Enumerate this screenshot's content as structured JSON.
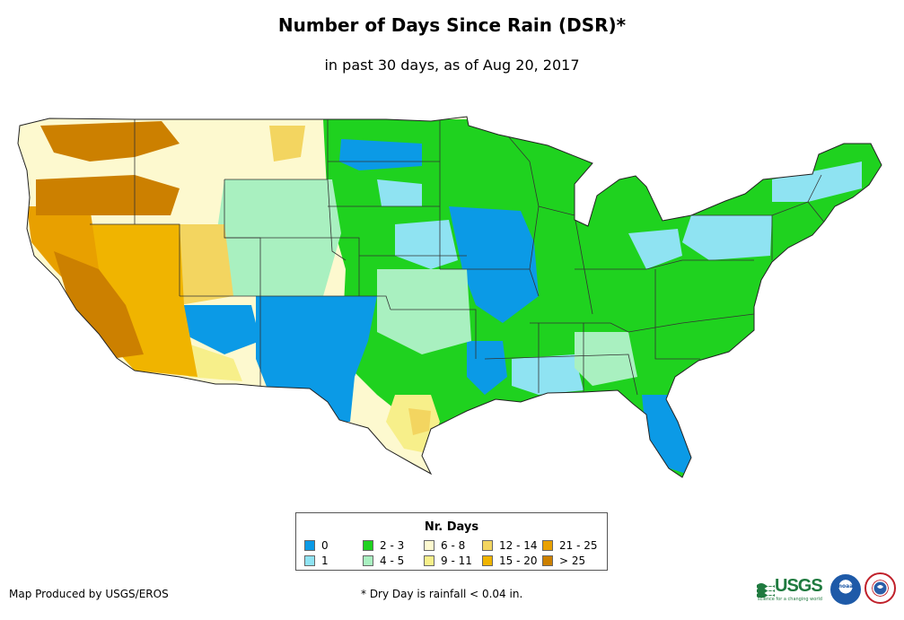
{
  "title": "Number of Days Since Rain (DSR)*",
  "subtitle": "in past 30 days, as of Aug 20, 2017",
  "legend": {
    "title": "Nr. Days",
    "items": [
      {
        "label": "0",
        "color": "#0b9ae6"
      },
      {
        "label": "1",
        "color": "#8fe3f2"
      },
      {
        "label": "2 - 3",
        "color": "#1fd21f"
      },
      {
        "label": "4 - 5",
        "color": "#a9f0c0"
      },
      {
        "label": "6 - 8",
        "color": "#fdf9cf"
      },
      {
        "label": "9 - 11",
        "color": "#f7ef8a"
      },
      {
        "label": "12 - 14",
        "color": "#f3d560"
      },
      {
        "label": "15 - 20",
        "color": "#f0b400"
      },
      {
        "label": "21 - 25",
        "color": "#e8a000"
      },
      {
        "label": "> 25",
        "color": "#cc8000"
      }
    ]
  },
  "credit": "Map Produced by USGS/EROS",
  "footnote": "* Dry Day is rainfall < 0.04 in.",
  "logos": {
    "usgs": {
      "text": "USGS",
      "tagline": "science for a changing world",
      "color": "#1f7a3f"
    },
    "noaa": {
      "text": "noaa"
    },
    "nws": {
      "text": "National Weather Service"
    }
  }
}
